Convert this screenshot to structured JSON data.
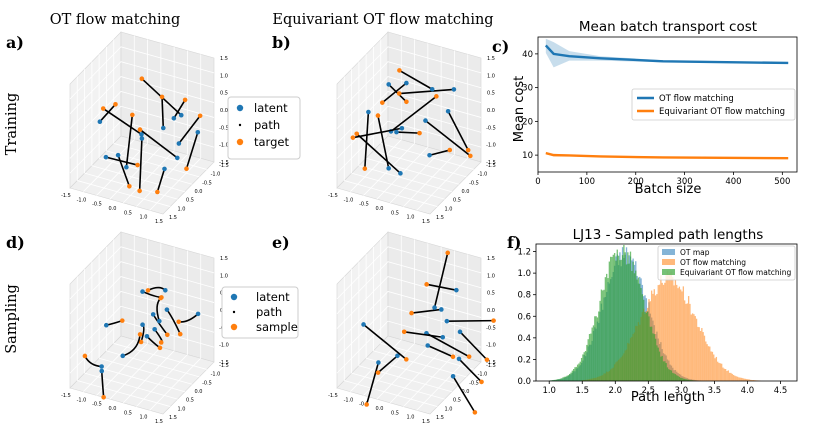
{
  "column_titles": [
    "OT flow matching",
    "Equivariant OT flow matching"
  ],
  "row_labels": [
    "Training",
    "Sampling"
  ],
  "panel_letters": [
    "a)",
    "b)",
    "c)",
    "d)",
    "e)",
    "f)"
  ],
  "legend_training": [
    "latent",
    "path",
    "target"
  ],
  "legend_sampling": [
    "latent",
    "path",
    "sample"
  ],
  "cube_ticks": {
    "x": [
      "-1.5",
      "-1.0",
      "-0.5",
      "0.0",
      "0.5",
      "1.0",
      "1.5"
    ],
    "y": [
      "1.5",
      "1.0",
      "0.5",
      "0.0",
      "-0.5",
      "-1.0",
      "-1.5"
    ],
    "z": [
      "1.5",
      "1.0",
      "0.5",
      "0.0",
      "-0.5",
      "-1.0",
      "-1.5"
    ]
  },
  "colors": {
    "latent": "#1f77b4",
    "target": "#ff7f0e",
    "path": "#000000",
    "otmap": "#1f77b4",
    "otfm": "#ff7f0e",
    "eqfm": "#2ca02c"
  },
  "chart_data": [
    {
      "type": "line",
      "title": "Mean batch transport cost",
      "xlabel": "Batch size",
      "ylabel": "Mean cost",
      "xlim": [
        0,
        530
      ],
      "ylim": [
        5,
        45
      ],
      "xticks": [
        "0",
        "100",
        "200",
        "300",
        "400",
        "500"
      ],
      "yticks": [
        "10",
        "20",
        "30",
        "40"
      ],
      "legend_position": "center-right",
      "series": [
        {
          "name": "OT flow matching",
          "x": [
            16,
            32,
            64,
            128,
            256,
            512
          ],
          "y": [
            42.5,
            40.0,
            39.3,
            38.7,
            37.8,
            37.3
          ],
          "band_low": [
            40.3,
            36.0,
            38.0,
            38.0,
            37.5,
            37.1
          ],
          "band_high": [
            44.5,
            43.5,
            40.8,
            39.3,
            38.1,
            37.5
          ]
        },
        {
          "name": "Equivariant OT flow matching",
          "x": [
            16,
            32,
            64,
            128,
            256,
            512
          ],
          "y": [
            10.6,
            10.0,
            9.9,
            9.6,
            9.3,
            9.1
          ],
          "band_low": [
            10.2,
            9.7,
            9.7,
            9.5,
            9.2,
            9.0
          ],
          "band_high": [
            11.0,
            10.4,
            10.1,
            9.8,
            9.4,
            9.2
          ]
        }
      ]
    },
    {
      "type": "histogram",
      "title": "LJ13 - Sampled path lengths",
      "xlabel": "Path length",
      "ylabel": "",
      "xlim": [
        0.8,
        4.75
      ],
      "ylim": [
        0,
        1.27
      ],
      "xticks": [
        "1.0",
        "1.5",
        "2.0",
        "2.5",
        "3.0",
        "3.5",
        "4.0",
        "4.5"
      ],
      "yticks": [
        "0.0",
        "0.2",
        "0.4",
        "0.6",
        "0.8",
        "1.0",
        "1.2"
      ],
      "legend_position": "top-right",
      "bin_width": 0.02,
      "series": [
        {
          "name": "OT map",
          "mean": 2.15,
          "std": 0.34,
          "min": 1.0,
          "max": 3.6
        },
        {
          "name": "OT flow matching",
          "mean": 2.8,
          "std": 0.42,
          "min": 1.5,
          "max": 4.6
        },
        {
          "name": "Equivariant OT flow matching",
          "mean": 2.1,
          "std": 0.33,
          "min": 1.0,
          "max": 3.5
        }
      ]
    }
  ]
}
